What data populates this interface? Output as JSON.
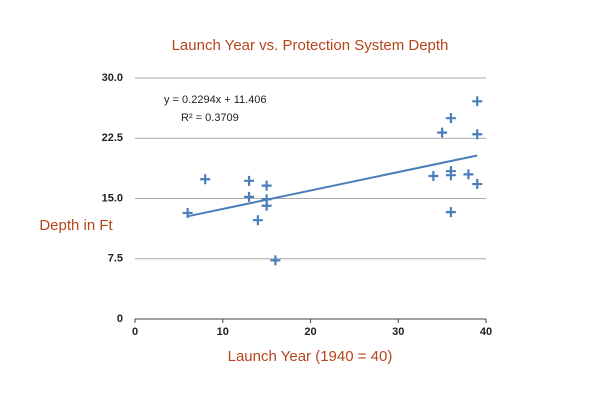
{
  "chart_data": {
    "type": "scatter",
    "title": "Launch Year vs. Protection System Depth",
    "x_label": "Launch Year (1940 = 40)",
    "y_label": "Depth in Ft",
    "series": [
      {
        "color": "#4a7ebb",
        "x": [
          6,
          8,
          13,
          13,
          14,
          15,
          15,
          15,
          16,
          34,
          35,
          36,
          36,
          36,
          36,
          38,
          39,
          39,
          39
        ],
        "values": [
          13.2,
          17.4,
          17.2,
          15.2,
          12.3,
          16.6,
          14.9,
          14.1,
          7.3,
          17.8,
          23.2,
          25,
          18.4,
          17.9,
          13.3,
          18,
          27.1,
          23,
          16.8
        ]
      }
    ],
    "trendline": {
      "color": "#4a7ebb",
      "slope": 0.2294,
      "intercept": 11.406,
      "x": [
        6,
        39
      ],
      "equation": "y = 0.2294x + 11.406",
      "r_squared": "R² = 0.3709"
    },
    "xlim": [
      0,
      40
    ],
    "xticks": [
      0,
      10,
      20,
      30,
      40
    ],
    "ylim": [
      0,
      30
    ],
    "yticks": [
      0,
      7.5,
      {
        "value": 15,
        "label": "15.0"
      },
      22.5,
      {
        "value": 30,
        "label": "30.0"
      }
    ],
    "grid": true
  }
}
